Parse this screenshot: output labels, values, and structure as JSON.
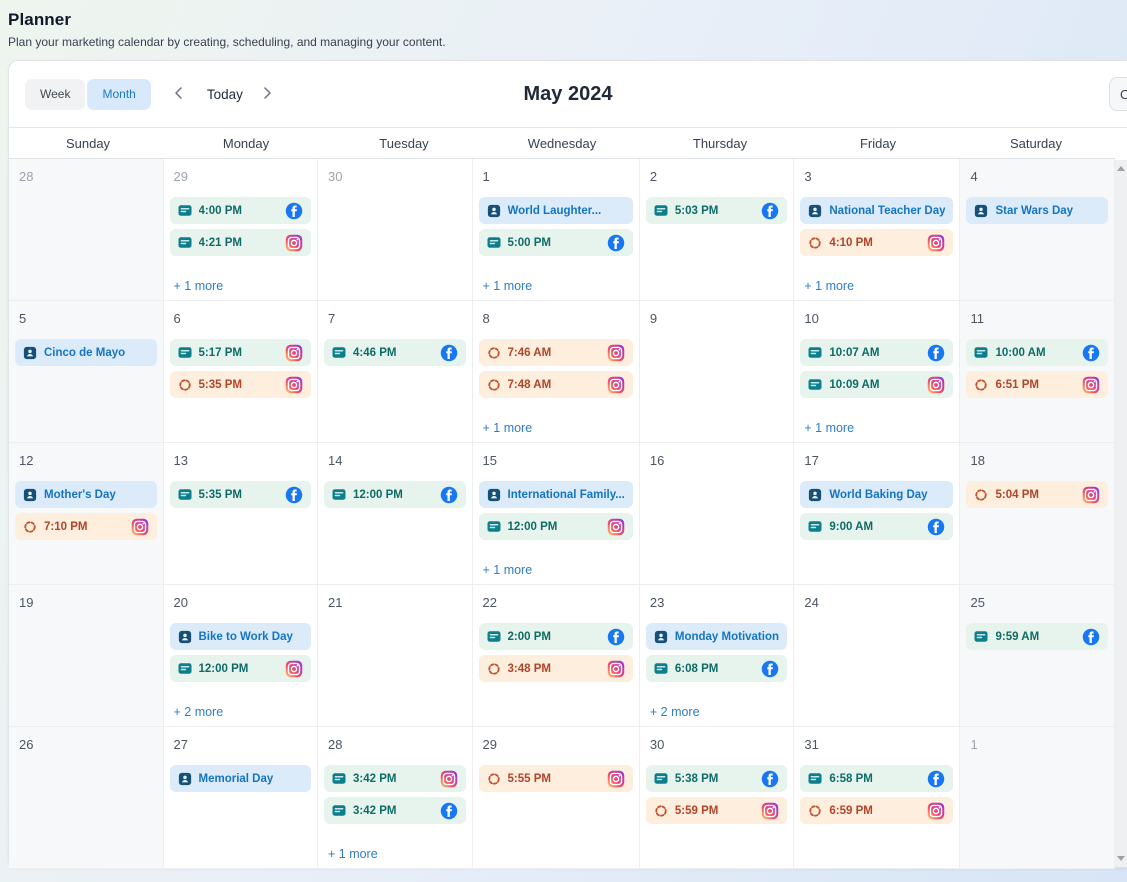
{
  "page": {
    "title": "Planner",
    "subtitle": "Plan your marketing calendar by creating, scheduling, and managing your content."
  },
  "toolbar": {
    "week_label": "Week",
    "month_label": "Month",
    "active_view": "Month",
    "today_label": "Today",
    "title": "May 2024",
    "partial_button_label": "C"
  },
  "weekday_headers": [
    "Sunday",
    "Monday",
    "Tuesday",
    "Wednesday",
    "Thursday",
    "Friday",
    "Saturday"
  ],
  "colors": {
    "facebook": "#1877F2",
    "instagram_gradient": [
      "#FFD776",
      "#F3545B",
      "#C837AB",
      "#7638FA"
    ],
    "month_button_active_bg": "#d7e9fb",
    "month_button_active_text": "#1d79c7",
    "scheduled_chip_bg": "#e7f4ed",
    "scheduled_chip_text": "#0e6b66",
    "processing_chip_bg": "#fdeedd",
    "processing_chip_text": "#b2442a",
    "holiday_chip_bg": "#dcebfa",
    "holiday_chip_text": "#1474c4",
    "more_link": "#2e7dc8"
  },
  "weeks": [
    {
      "days": [
        {
          "date": "28",
          "other_month": true,
          "events": [],
          "more": null
        },
        {
          "date": "29",
          "other_month": true,
          "events": [
            {
              "type": "scheduled",
              "label": "4:00 PM",
              "platform": "facebook"
            },
            {
              "type": "scheduled",
              "label": "4:21 PM",
              "platform": "instagram"
            }
          ],
          "more": "+ 1 more"
        },
        {
          "date": "30",
          "other_month": true,
          "events": [],
          "more": null
        },
        {
          "date": "1",
          "other_month": false,
          "events": [
            {
              "type": "holiday",
              "label": "World Laughter...",
              "platform": null
            },
            {
              "type": "scheduled",
              "label": "5:00 PM",
              "platform": "facebook"
            }
          ],
          "more": "+ 1 more"
        },
        {
          "date": "2",
          "other_month": false,
          "events": [
            {
              "type": "scheduled",
              "label": "5:03 PM",
              "platform": "facebook"
            }
          ],
          "more": null
        },
        {
          "date": "3",
          "other_month": false,
          "events": [
            {
              "type": "holiday",
              "label": "National Teacher Day",
              "platform": null
            },
            {
              "type": "processing",
              "label": "4:10 PM",
              "platform": "instagram"
            }
          ],
          "more": "+ 1 more"
        },
        {
          "date": "4",
          "other_month": false,
          "events": [
            {
              "type": "holiday",
              "label": "Star Wars Day",
              "platform": null
            }
          ],
          "more": null
        }
      ]
    },
    {
      "days": [
        {
          "date": "5",
          "other_month": false,
          "events": [
            {
              "type": "holiday",
              "label": "Cinco de Mayo",
              "platform": null
            }
          ],
          "more": null
        },
        {
          "date": "6",
          "other_month": false,
          "events": [
            {
              "type": "scheduled",
              "label": "5:17 PM",
              "platform": "instagram"
            },
            {
              "type": "processing",
              "label": "5:35 PM",
              "platform": "instagram"
            }
          ],
          "more": null
        },
        {
          "date": "7",
          "other_month": false,
          "events": [
            {
              "type": "scheduled",
              "label": "4:46 PM",
              "platform": "facebook"
            }
          ],
          "more": null
        },
        {
          "date": "8",
          "other_month": false,
          "events": [
            {
              "type": "processing",
              "label": "7:46 AM",
              "platform": "instagram"
            },
            {
              "type": "processing",
              "label": "7:48 AM",
              "platform": "instagram"
            }
          ],
          "more": "+ 1 more"
        },
        {
          "date": "9",
          "other_month": false,
          "events": [],
          "more": null
        },
        {
          "date": "10",
          "other_month": false,
          "events": [
            {
              "type": "scheduled",
              "label": "10:07 AM",
              "platform": "facebook"
            },
            {
              "type": "scheduled",
              "label": "10:09 AM",
              "platform": "instagram"
            }
          ],
          "more": "+ 1 more"
        },
        {
          "date": "11",
          "other_month": false,
          "events": [
            {
              "type": "scheduled",
              "label": "10:00 AM",
              "platform": "facebook"
            },
            {
              "type": "processing",
              "label": "6:51 PM",
              "platform": "instagram"
            }
          ],
          "more": null
        }
      ]
    },
    {
      "days": [
        {
          "date": "12",
          "other_month": false,
          "events": [
            {
              "type": "holiday",
              "label": "Mother's Day",
              "platform": null
            },
            {
              "type": "processing",
              "label": "7:10 PM",
              "platform": "instagram"
            }
          ],
          "more": null
        },
        {
          "date": "13",
          "other_month": false,
          "events": [
            {
              "type": "scheduled",
              "label": "5:35 PM",
              "platform": "facebook"
            }
          ],
          "more": null
        },
        {
          "date": "14",
          "other_month": false,
          "events": [
            {
              "type": "scheduled",
              "label": "12:00 PM",
              "platform": "facebook"
            }
          ],
          "more": null
        },
        {
          "date": "15",
          "other_month": false,
          "events": [
            {
              "type": "holiday",
              "label": "International Family...",
              "platform": null
            },
            {
              "type": "scheduled",
              "label": "12:00 PM",
              "platform": "instagram"
            }
          ],
          "more": "+ 1 more"
        },
        {
          "date": "16",
          "other_month": false,
          "events": [],
          "more": null
        },
        {
          "date": "17",
          "other_month": false,
          "events": [
            {
              "type": "holiday",
              "label": "World Baking Day",
              "platform": null
            },
            {
              "type": "scheduled",
              "label": "9:00 AM",
              "platform": "facebook"
            }
          ],
          "more": null
        },
        {
          "date": "18",
          "other_month": false,
          "events": [
            {
              "type": "processing",
              "label": "5:04 PM",
              "platform": "instagram"
            }
          ],
          "more": null
        }
      ]
    },
    {
      "days": [
        {
          "date": "19",
          "other_month": false,
          "events": [],
          "more": null
        },
        {
          "date": "20",
          "other_month": false,
          "events": [
            {
              "type": "holiday",
              "label": "Bike to Work Day",
              "platform": null
            },
            {
              "type": "scheduled",
              "label": "12:00 PM",
              "platform": "instagram"
            }
          ],
          "more": "+ 2 more"
        },
        {
          "date": "21",
          "other_month": false,
          "events": [],
          "more": null
        },
        {
          "date": "22",
          "other_month": false,
          "events": [
            {
              "type": "scheduled",
              "label": "2:00 PM",
              "platform": "facebook"
            },
            {
              "type": "processing",
              "label": "3:48 PM",
              "platform": "instagram"
            }
          ],
          "more": null
        },
        {
          "date": "23",
          "other_month": false,
          "events": [
            {
              "type": "holiday",
              "label": "Monday Motivation",
              "platform": null
            },
            {
              "type": "scheduled",
              "label": "6:08 PM",
              "platform": "facebook"
            }
          ],
          "more": "+ 2 more"
        },
        {
          "date": "24",
          "other_month": false,
          "events": [],
          "more": null
        },
        {
          "date": "25",
          "other_month": false,
          "events": [
            {
              "type": "scheduled",
              "label": "9:59 AM",
              "platform": "facebook"
            }
          ],
          "more": null
        }
      ]
    },
    {
      "days": [
        {
          "date": "26",
          "other_month": false,
          "events": [],
          "more": null
        },
        {
          "date": "27",
          "other_month": false,
          "events": [
            {
              "type": "holiday",
              "label": "Memorial Day",
              "platform": null
            }
          ],
          "more": null
        },
        {
          "date": "28",
          "other_month": false,
          "events": [
            {
              "type": "scheduled",
              "label": "3:42 PM",
              "platform": "instagram"
            },
            {
              "type": "scheduled",
              "label": "3:42 PM",
              "platform": "facebook"
            }
          ],
          "more": "+ 1 more"
        },
        {
          "date": "29",
          "other_month": false,
          "events": [
            {
              "type": "processing",
              "label": "5:55 PM",
              "platform": "instagram"
            }
          ],
          "more": null
        },
        {
          "date": "30",
          "other_month": false,
          "events": [
            {
              "type": "scheduled",
              "label": "5:38 PM",
              "platform": "facebook"
            },
            {
              "type": "processing",
              "label": "5:59 PM",
              "platform": "instagram"
            }
          ],
          "more": null
        },
        {
          "date": "31",
          "other_month": false,
          "events": [
            {
              "type": "scheduled",
              "label": "6:58 PM",
              "platform": "facebook"
            },
            {
              "type": "processing",
              "label": "6:59 PM",
              "platform": "instagram"
            }
          ],
          "more": null
        },
        {
          "date": "1",
          "other_month": true,
          "events": [],
          "more": null
        }
      ]
    }
  ]
}
